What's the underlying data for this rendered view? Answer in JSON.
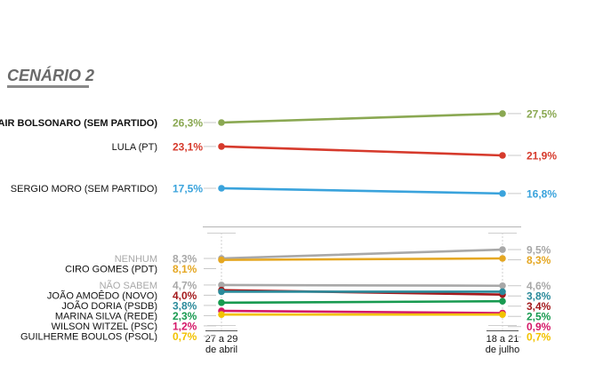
{
  "chart_data": {
    "type": "line",
    "title": "CENÁRIO 2",
    "x": [
      "27 a 29 de abril",
      "18 a 21 de julho"
    ],
    "x_tick_labels": [
      {
        "line1": "27 a 29",
        "line2": "de abril"
      },
      {
        "line1": "18 a 21",
        "line2": "de julho"
      }
    ],
    "grid": false,
    "legend": "none",
    "series": [
      {
        "name": "JAIR BOLSONARO (SEM PARTIDO)",
        "values": [
          26.3,
          27.5
        ],
        "labels": [
          "26,3%",
          "27,5%"
        ],
        "color": "#8aa852",
        "bold": true,
        "muted": false
      },
      {
        "name": "LULA (PT)",
        "values": [
          23.1,
          21.9
        ],
        "labels": [
          "23,1%",
          "21,9%"
        ],
        "color": "#d63a2c",
        "bold": false,
        "muted": false
      },
      {
        "name": "SERGIO MORO (SEM PARTIDO)",
        "values": [
          17.5,
          16.8
        ],
        "labels": [
          "17,5%",
          "16,8%"
        ],
        "color": "#3aa3dc",
        "bold": false,
        "muted": false
      },
      {
        "name": "NENHUM",
        "values": [
          8.3,
          9.5
        ],
        "labels": [
          "8,3%",
          "9,5%"
        ],
        "color": "#a8a8a8",
        "bold": false,
        "muted": true
      },
      {
        "name": "CIRO GOMES (PDT)",
        "values": [
          8.1,
          8.3
        ],
        "labels": [
          "8,1%",
          "8,3%"
        ],
        "color": "#e5a722",
        "bold": false,
        "muted": false
      },
      {
        "name": "NÃO SABEM",
        "values": [
          4.7,
          4.6
        ],
        "labels": [
          "4,7%",
          "4,6%"
        ],
        "color": "#a8a8a8",
        "bold": false,
        "muted": true
      },
      {
        "name": "JOÃO AMOÊDO (NOVO)",
        "values": [
          4.0,
          3.4
        ],
        "labels": [
          "4,0%",
          "3,4%"
        ],
        "color": "#a3191c",
        "bold": false,
        "muted": false
      },
      {
        "name": "JOÃO DORIA (PSDB)",
        "values": [
          3.8,
          3.8
        ],
        "labels": [
          "3,8%",
          "3,8%"
        ],
        "color": "#2a8a9a",
        "bold": false,
        "muted": false
      },
      {
        "name": "MARINA SILVA (REDE)",
        "values": [
          2.3,
          2.5
        ],
        "labels": [
          "2,3%",
          "2,5%"
        ],
        "color": "#189a50",
        "bold": false,
        "muted": false
      },
      {
        "name": "WILSON WITZEL (PSC)",
        "values": [
          1.2,
          0.9
        ],
        "labels": [
          "1,2%",
          "0,9%"
        ],
        "color": "#d41868",
        "bold": false,
        "muted": false
      },
      {
        "name": "GUILHERME BOULOS (PSOL)",
        "values": [
          0.7,
          0.7
        ],
        "labels": [
          "0,7%",
          "0,7%"
        ],
        "color": "#f2c200",
        "bold": false,
        "muted": false
      }
    ]
  }
}
